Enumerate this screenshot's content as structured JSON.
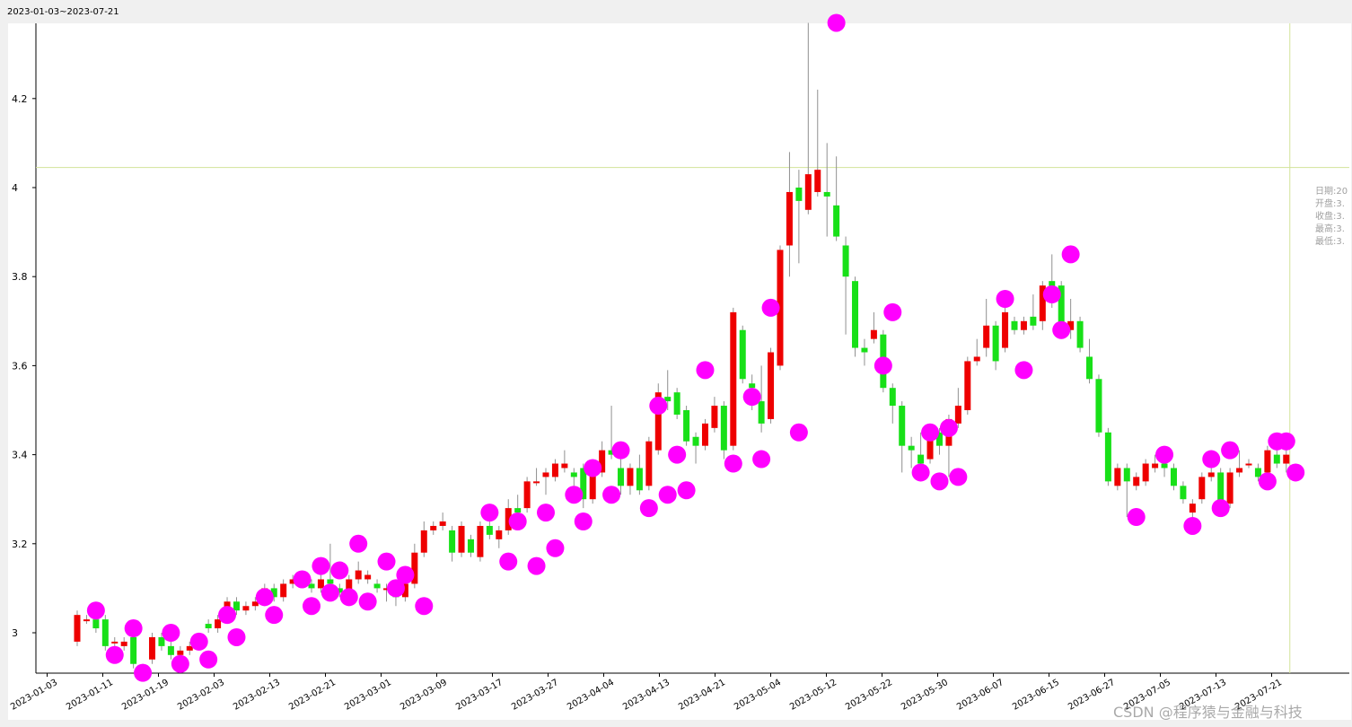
{
  "header": {
    "period": "2023-01-03~2023-07-21"
  },
  "info_panel": {
    "lines": [
      "日期:20",
      "开盘:3.",
      "收盘:3.",
      "最高:3.",
      "最低:3."
    ]
  },
  "watermark": "CSDN @程序猿与金融与科技",
  "colors": {
    "up": "#ee0000",
    "down": "#18e018",
    "marker": "#ff00ff",
    "crosshair": "#d2e29a",
    "wick": "#909090"
  },
  "chart_data": {
    "type": "candlestick",
    "title": "",
    "xlabel": "",
    "ylabel": "",
    "ylim": [
      2.91,
      4.37
    ],
    "grid": false,
    "y_ticks": [
      "3",
      "3.2",
      "3.4",
      "3.6",
      "3.8",
      "4",
      "4.2"
    ],
    "x_tick_labels": [
      "2023-01-03",
      "2023-01-11",
      "2023-01-19",
      "2023-02-03",
      "2023-02-13",
      "2023-02-21",
      "2023-03-01",
      "2023-03-09",
      "2023-03-17",
      "2023-03-27",
      "2023-04-04",
      "2023-04-13",
      "2023-04-21",
      "2023-05-04",
      "2023-05-12",
      "2023-05-22",
      "2023-05-30",
      "2023-06-07",
      "2023-06-15",
      "2023-06-27",
      "2023-07-05",
      "2023-07-13",
      "2023-07-21"
    ],
    "crosshair_y": 4.045,
    "candles": [
      {
        "o": 2.98,
        "c": 3.04,
        "h": 3.05,
        "l": 2.97
      },
      {
        "o": 3.03,
        "c": 3.03,
        "h": 3.04,
        "l": 3.02
      },
      {
        "o": 3.03,
        "c": 3.01,
        "h": 3.04,
        "l": 3.0
      },
      {
        "o": 3.03,
        "c": 2.97,
        "h": 3.04,
        "l": 2.96
      },
      {
        "o": 2.98,
        "c": 2.98,
        "h": 2.99,
        "l": 2.96
      },
      {
        "o": 2.97,
        "c": 2.98,
        "h": 2.99,
        "l": 2.96
      },
      {
        "o": 2.99,
        "c": 2.93,
        "h": 3.0,
        "l": 2.92
      },
      {
        "o": 2.92,
        "c": 2.92,
        "h": 2.93,
        "l": 2.91
      },
      {
        "o": 2.94,
        "c": 2.99,
        "h": 3.0,
        "l": 2.93
      },
      {
        "o": 2.99,
        "c": 2.97,
        "h": 3.0,
        "l": 2.96
      },
      {
        "o": 2.97,
        "c": 2.95,
        "h": 2.98,
        "l": 2.94
      },
      {
        "o": 2.95,
        "c": 2.96,
        "h": 2.97,
        "l": 2.94
      },
      {
        "o": 2.96,
        "c": 2.97,
        "h": 2.98,
        "l": 2.95
      },
      {
        "o": 2.97,
        "c": 2.99,
        "h": 3.0,
        "l": 2.96
      },
      {
        "o": 3.02,
        "c": 3.01,
        "h": 3.03,
        "l": 3.0
      },
      {
        "o": 3.01,
        "c": 3.03,
        "h": 3.04,
        "l": 3.0
      },
      {
        "o": 3.03,
        "c": 3.07,
        "h": 3.08,
        "l": 3.02
      },
      {
        "o": 3.07,
        "c": 3.05,
        "h": 3.08,
        "l": 3.04
      },
      {
        "o": 3.05,
        "c": 3.06,
        "h": 3.07,
        "l": 3.04
      },
      {
        "o": 3.06,
        "c": 3.07,
        "h": 3.08,
        "l": 3.05
      },
      {
        "o": 3.07,
        "c": 3.1,
        "h": 3.11,
        "l": 3.06
      },
      {
        "o": 3.1,
        "c": 3.08,
        "h": 3.11,
        "l": 3.07
      },
      {
        "o": 3.08,
        "c": 3.11,
        "h": 3.12,
        "l": 3.07
      },
      {
        "o": 3.11,
        "c": 3.12,
        "h": 3.13,
        "l": 3.1
      },
      {
        "o": 3.12,
        "c": 3.11,
        "h": 3.13,
        "l": 3.1
      },
      {
        "o": 3.11,
        "c": 3.1,
        "h": 3.12,
        "l": 3.09
      },
      {
        "o": 3.1,
        "c": 3.12,
        "h": 3.13,
        "l": 3.09
      },
      {
        "o": 3.12,
        "c": 3.11,
        "h": 3.2,
        "l": 3.1
      },
      {
        "o": 3.1,
        "c": 3.09,
        "h": 3.11,
        "l": 3.08
      },
      {
        "o": 3.08,
        "c": 3.12,
        "h": 3.13,
        "l": 3.07
      },
      {
        "o": 3.12,
        "c": 3.14,
        "h": 3.16,
        "l": 3.11
      },
      {
        "o": 3.12,
        "c": 3.13,
        "h": 3.14,
        "l": 3.11
      },
      {
        "o": 3.11,
        "c": 3.1,
        "h": 3.12,
        "l": 3.09
      },
      {
        "o": 3.1,
        "c": 3.1,
        "h": 3.11,
        "l": 3.07
      },
      {
        "o": 3.09,
        "c": 3.08,
        "h": 3.1,
        "l": 3.06
      },
      {
        "o": 3.08,
        "c": 3.11,
        "h": 3.12,
        "l": 3.07
      },
      {
        "o": 3.11,
        "c": 3.18,
        "h": 3.2,
        "l": 3.1
      },
      {
        "o": 3.18,
        "c": 3.23,
        "h": 3.25,
        "l": 3.17
      },
      {
        "o": 3.23,
        "c": 3.24,
        "h": 3.25,
        "l": 3.22
      },
      {
        "o": 3.24,
        "c": 3.25,
        "h": 3.27,
        "l": 3.23
      },
      {
        "o": 3.23,
        "c": 3.18,
        "h": 3.24,
        "l": 3.16
      },
      {
        "o": 3.18,
        "c": 3.24,
        "h": 3.25,
        "l": 3.17
      },
      {
        "o": 3.21,
        "c": 3.18,
        "h": 3.22,
        "l": 3.17
      },
      {
        "o": 3.17,
        "c": 3.24,
        "h": 3.25,
        "l": 3.16
      },
      {
        "o": 3.24,
        "c": 3.22,
        "h": 3.27,
        "l": 3.21
      },
      {
        "o": 3.21,
        "c": 3.23,
        "h": 3.24,
        "l": 3.19
      },
      {
        "o": 3.23,
        "c": 3.28,
        "h": 3.3,
        "l": 3.22
      },
      {
        "o": 3.28,
        "c": 3.27,
        "h": 3.31,
        "l": 3.25
      },
      {
        "o": 3.28,
        "c": 3.34,
        "h": 3.35,
        "l": 3.27
      },
      {
        "o": 3.34,
        "c": 3.34,
        "h": 3.37,
        "l": 3.33
      },
      {
        "o": 3.35,
        "c": 3.36,
        "h": 3.37,
        "l": 3.31
      },
      {
        "o": 3.35,
        "c": 3.38,
        "h": 3.39,
        "l": 3.34
      },
      {
        "o": 3.37,
        "c": 3.38,
        "h": 3.41,
        "l": 3.36
      },
      {
        "o": 3.36,
        "c": 3.35,
        "h": 3.37,
        "l": 3.33
      },
      {
        "o": 3.37,
        "c": 3.3,
        "h": 3.38,
        "l": 3.28
      },
      {
        "o": 3.3,
        "c": 3.37,
        "h": 3.38,
        "l": 3.29
      },
      {
        "o": 3.36,
        "c": 3.41,
        "h": 3.43,
        "l": 3.35
      },
      {
        "o": 3.41,
        "c": 3.4,
        "h": 3.51,
        "l": 3.39
      },
      {
        "o": 3.37,
        "c": 3.33,
        "h": 3.39,
        "l": 3.31
      },
      {
        "o": 3.33,
        "c": 3.37,
        "h": 3.38,
        "l": 3.31
      },
      {
        "o": 3.37,
        "c": 3.32,
        "h": 3.4,
        "l": 3.31
      },
      {
        "o": 3.33,
        "c": 3.43,
        "h": 3.44,
        "l": 3.32
      },
      {
        "o": 3.41,
        "c": 3.54,
        "h": 3.56,
        "l": 3.4
      },
      {
        "o": 3.53,
        "c": 3.52,
        "h": 3.59,
        "l": 3.5
      },
      {
        "o": 3.54,
        "c": 3.49,
        "h": 3.55,
        "l": 3.48
      },
      {
        "o": 3.5,
        "c": 3.43,
        "h": 3.51,
        "l": 3.42
      },
      {
        "o": 3.44,
        "c": 3.42,
        "h": 3.45,
        "l": 3.38
      },
      {
        "o": 3.42,
        "c": 3.47,
        "h": 3.48,
        "l": 3.41
      },
      {
        "o": 3.46,
        "c": 3.51,
        "h": 3.53,
        "l": 3.45
      },
      {
        "o": 3.51,
        "c": 3.41,
        "h": 3.52,
        "l": 3.39
      },
      {
        "o": 3.42,
        "c": 3.72,
        "h": 3.73,
        "l": 3.41
      },
      {
        "o": 3.68,
        "c": 3.57,
        "h": 3.69,
        "l": 3.56
      },
      {
        "o": 3.56,
        "c": 3.55,
        "h": 3.58,
        "l": 3.5
      },
      {
        "o": 3.52,
        "c": 3.47,
        "h": 3.6,
        "l": 3.45
      },
      {
        "o": 3.48,
        "c": 3.63,
        "h": 3.64,
        "l": 3.47
      },
      {
        "o": 3.6,
        "c": 3.86,
        "h": 3.87,
        "l": 3.59
      },
      {
        "o": 3.87,
        "c": 3.99,
        "h": 4.08,
        "l": 3.8
      },
      {
        "o": 4.0,
        "c": 3.97,
        "h": 4.04,
        "l": 3.83
      },
      {
        "o": 3.95,
        "c": 4.03,
        "h": 4.37,
        "l": 3.94
      },
      {
        "o": 3.99,
        "c": 4.04,
        "h": 4.22,
        "l": 3.98
      },
      {
        "o": 3.99,
        "c": 3.98,
        "h": 4.1,
        "l": 3.89
      },
      {
        "o": 3.96,
        "c": 3.89,
        "h": 4.07,
        "l": 3.88
      },
      {
        "o": 3.87,
        "c": 3.8,
        "h": 3.89,
        "l": 3.67
      },
      {
        "o": 3.79,
        "c": 3.64,
        "h": 3.8,
        "l": 3.62
      },
      {
        "o": 3.64,
        "c": 3.63,
        "h": 3.66,
        "l": 3.6
      },
      {
        "o": 3.66,
        "c": 3.68,
        "h": 3.72,
        "l": 3.65
      },
      {
        "o": 3.67,
        "c": 3.55,
        "h": 3.68,
        "l": 3.54
      },
      {
        "o": 3.55,
        "c": 3.51,
        "h": 3.56,
        "l": 3.47
      },
      {
        "o": 3.51,
        "c": 3.42,
        "h": 3.52,
        "l": 3.36
      },
      {
        "o": 3.42,
        "c": 3.41,
        "h": 3.44,
        "l": 3.37
      },
      {
        "o": 3.4,
        "c": 3.38,
        "h": 3.45,
        "l": 3.34
      },
      {
        "o": 3.39,
        "c": 3.44,
        "h": 3.45,
        "l": 3.38
      },
      {
        "o": 3.45,
        "c": 3.42,
        "h": 3.46,
        "l": 3.4
      },
      {
        "o": 3.42,
        "c": 3.48,
        "h": 3.49,
        "l": 3.35
      },
      {
        "o": 3.47,
        "c": 3.51,
        "h": 3.55,
        "l": 3.46
      },
      {
        "o": 3.5,
        "c": 3.61,
        "h": 3.62,
        "l": 3.49
      },
      {
        "o": 3.61,
        "c": 3.62,
        "h": 3.66,
        "l": 3.6
      },
      {
        "o": 3.64,
        "c": 3.69,
        "h": 3.75,
        "l": 3.62
      },
      {
        "o": 3.69,
        "c": 3.61,
        "h": 3.7,
        "l": 3.59
      },
      {
        "o": 3.64,
        "c": 3.72,
        "h": 3.74,
        "l": 3.63
      },
      {
        "o": 3.7,
        "c": 3.68,
        "h": 3.71,
        "l": 3.67
      },
      {
        "o": 3.68,
        "c": 3.7,
        "h": 3.71,
        "l": 3.67
      },
      {
        "o": 3.71,
        "c": 3.69,
        "h": 3.76,
        "l": 3.68
      },
      {
        "o": 3.7,
        "c": 3.78,
        "h": 3.79,
        "l": 3.68
      },
      {
        "o": 3.79,
        "c": 3.75,
        "h": 3.85,
        "l": 3.73
      },
      {
        "o": 3.78,
        "c": 3.67,
        "h": 3.79,
        "l": 3.66
      },
      {
        "o": 3.68,
        "c": 3.7,
        "h": 3.75,
        "l": 3.66
      },
      {
        "o": 3.7,
        "c": 3.64,
        "h": 3.71,
        "l": 3.63
      },
      {
        "o": 3.62,
        "c": 3.57,
        "h": 3.66,
        "l": 3.56
      },
      {
        "o": 3.57,
        "c": 3.45,
        "h": 3.58,
        "l": 3.44
      },
      {
        "o": 3.45,
        "c": 3.34,
        "h": 3.46,
        "l": 3.33
      },
      {
        "o": 3.33,
        "c": 3.37,
        "h": 3.38,
        "l": 3.32
      },
      {
        "o": 3.37,
        "c": 3.34,
        "h": 3.38,
        "l": 3.26
      },
      {
        "o": 3.33,
        "c": 3.35,
        "h": 3.36,
        "l": 3.32
      },
      {
        "o": 3.34,
        "c": 3.38,
        "h": 3.39,
        "l": 3.33
      },
      {
        "o": 3.37,
        "c": 3.38,
        "h": 3.4,
        "l": 3.36
      },
      {
        "o": 3.38,
        "c": 3.37,
        "h": 3.39,
        "l": 3.35
      },
      {
        "o": 3.37,
        "c": 3.33,
        "h": 3.38,
        "l": 3.32
      },
      {
        "o": 3.33,
        "c": 3.3,
        "h": 3.34,
        "l": 3.29
      },
      {
        "o": 3.27,
        "c": 3.29,
        "h": 3.3,
        "l": 3.24
      },
      {
        "o": 3.3,
        "c": 3.35,
        "h": 3.36,
        "l": 3.29
      },
      {
        "o": 3.35,
        "c": 3.36,
        "h": 3.39,
        "l": 3.34
      },
      {
        "o": 3.36,
        "c": 3.28,
        "h": 3.37,
        "l": 3.27
      },
      {
        "o": 3.29,
        "c": 3.36,
        "h": 3.37,
        "l": 3.28
      },
      {
        "o": 3.36,
        "c": 3.37,
        "h": 3.41,
        "l": 3.35
      },
      {
        "o": 3.38,
        "c": 3.38,
        "h": 3.39,
        "l": 3.37
      },
      {
        "o": 3.37,
        "c": 3.35,
        "h": 3.38,
        "l": 3.34
      },
      {
        "o": 3.36,
        "c": 3.41,
        "h": 3.42,
        "l": 3.34
      },
      {
        "o": 3.4,
        "c": 3.38,
        "h": 3.43,
        "l": 3.37
      },
      {
        "o": 3.38,
        "c": 3.4,
        "h": 3.43,
        "l": 3.36
      }
    ],
    "markers": [
      {
        "i": 2,
        "y": 3.05
      },
      {
        "i": 4,
        "y": 2.95
      },
      {
        "i": 6,
        "y": 3.01
      },
      {
        "i": 7,
        "y": 2.91
      },
      {
        "i": 10,
        "y": 3.0
      },
      {
        "i": 11,
        "y": 2.93
      },
      {
        "i": 13,
        "y": 2.98
      },
      {
        "i": 14,
        "y": 2.94
      },
      {
        "i": 16,
        "y": 3.04
      },
      {
        "i": 17,
        "y": 2.99
      },
      {
        "i": 20,
        "y": 3.08
      },
      {
        "i": 21,
        "y": 3.04
      },
      {
        "i": 24,
        "y": 3.12
      },
      {
        "i": 25,
        "y": 3.06
      },
      {
        "i": 26,
        "y": 3.15
      },
      {
        "i": 27,
        "y": 3.09
      },
      {
        "i": 28,
        "y": 3.14
      },
      {
        "i": 29,
        "y": 3.08
      },
      {
        "i": 30,
        "y": 3.2
      },
      {
        "i": 31,
        "y": 3.07
      },
      {
        "i": 33,
        "y": 3.16
      },
      {
        "i": 34,
        "y": 3.1
      },
      {
        "i": 35,
        "y": 3.13
      },
      {
        "i": 37,
        "y": 3.06
      },
      {
        "i": 44,
        "y": 3.27
      },
      {
        "i": 46,
        "y": 3.16
      },
      {
        "i": 47,
        "y": 3.25
      },
      {
        "i": 49,
        "y": 3.15
      },
      {
        "i": 50,
        "y": 3.27
      },
      {
        "i": 51,
        "y": 3.19
      },
      {
        "i": 53,
        "y": 3.31
      },
      {
        "i": 54,
        "y": 3.25
      },
      {
        "i": 55,
        "y": 3.37
      },
      {
        "i": 57,
        "y": 3.31
      },
      {
        "i": 58,
        "y": 3.41
      },
      {
        "i": 61,
        "y": 3.28
      },
      {
        "i": 62,
        "y": 3.51
      },
      {
        "i": 63,
        "y": 3.31
      },
      {
        "i": 64,
        "y": 3.4
      },
      {
        "i": 65,
        "y": 3.32
      },
      {
        "i": 67,
        "y": 3.59
      },
      {
        "i": 70,
        "y": 3.38
      },
      {
        "i": 72,
        "y": 3.53
      },
      {
        "i": 73,
        "y": 3.39
      },
      {
        "i": 74,
        "y": 3.73
      },
      {
        "i": 77,
        "y": 3.45
      },
      {
        "i": 81,
        "y": 4.37
      },
      {
        "i": 86,
        "y": 3.6
      },
      {
        "i": 87,
        "y": 3.72
      },
      {
        "i": 90,
        "y": 3.36
      },
      {
        "i": 91,
        "y": 3.45
      },
      {
        "i": 92,
        "y": 3.34
      },
      {
        "i": 93,
        "y": 3.46
      },
      {
        "i": 94,
        "y": 3.35
      },
      {
        "i": 99,
        "y": 3.75
      },
      {
        "i": 101,
        "y": 3.59
      },
      {
        "i": 104,
        "y": 3.76
      },
      {
        "i": 105,
        "y": 3.68
      },
      {
        "i": 106,
        "y": 3.85
      },
      {
        "i": 113,
        "y": 3.26
      },
      {
        "i": 116,
        "y": 3.4
      },
      {
        "i": 119,
        "y": 3.24
      },
      {
        "i": 121,
        "y": 3.39
      },
      {
        "i": 122,
        "y": 3.28
      },
      {
        "i": 123,
        "y": 3.41
      },
      {
        "i": 127,
        "y": 3.34
      },
      {
        "i": 128,
        "y": 3.43
      },
      {
        "i": 129,
        "y": 3.43
      },
      {
        "i": 130,
        "y": 3.36
      }
    ]
  }
}
